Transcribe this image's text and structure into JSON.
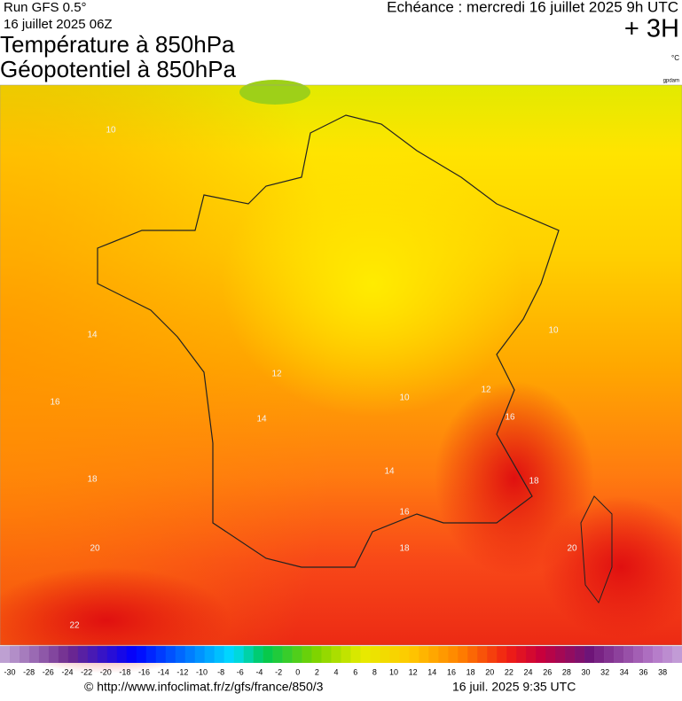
{
  "header": {
    "model": "Run GFS 0.5°",
    "run": "16 juillet 2025 06Z",
    "title1": "Température à 850hPa",
    "title2": "Géopotentiel à 850hPa",
    "echeance": "Echéance : mercredi 16 juillet 2025 9h UTC",
    "offset": "+ 3H",
    "unit": "°C",
    "credit": "gpdam"
  },
  "map": {
    "contour_labels": [
      "10",
      "14",
      "16",
      "18",
      "20",
      "22",
      "12",
      "14",
      "10",
      "14",
      "16",
      "18",
      "20",
      "18",
      "16",
      "12",
      "10"
    ]
  },
  "scale": {
    "labels": [
      -30,
      -28,
      -26,
      -24,
      -22,
      -20,
      -18,
      -16,
      -14,
      -12,
      -10,
      -8,
      -6,
      -4,
      -2,
      0,
      2,
      4,
      6,
      8,
      10,
      12,
      14,
      16,
      18,
      20,
      22,
      24,
      26,
      28,
      30,
      32,
      34,
      36,
      38
    ]
  },
  "footer": {
    "url": "© http://www.infoclimat.fr/z/gfs/france/850/3",
    "date": "16 juil. 2025  9:35 UTC"
  }
}
